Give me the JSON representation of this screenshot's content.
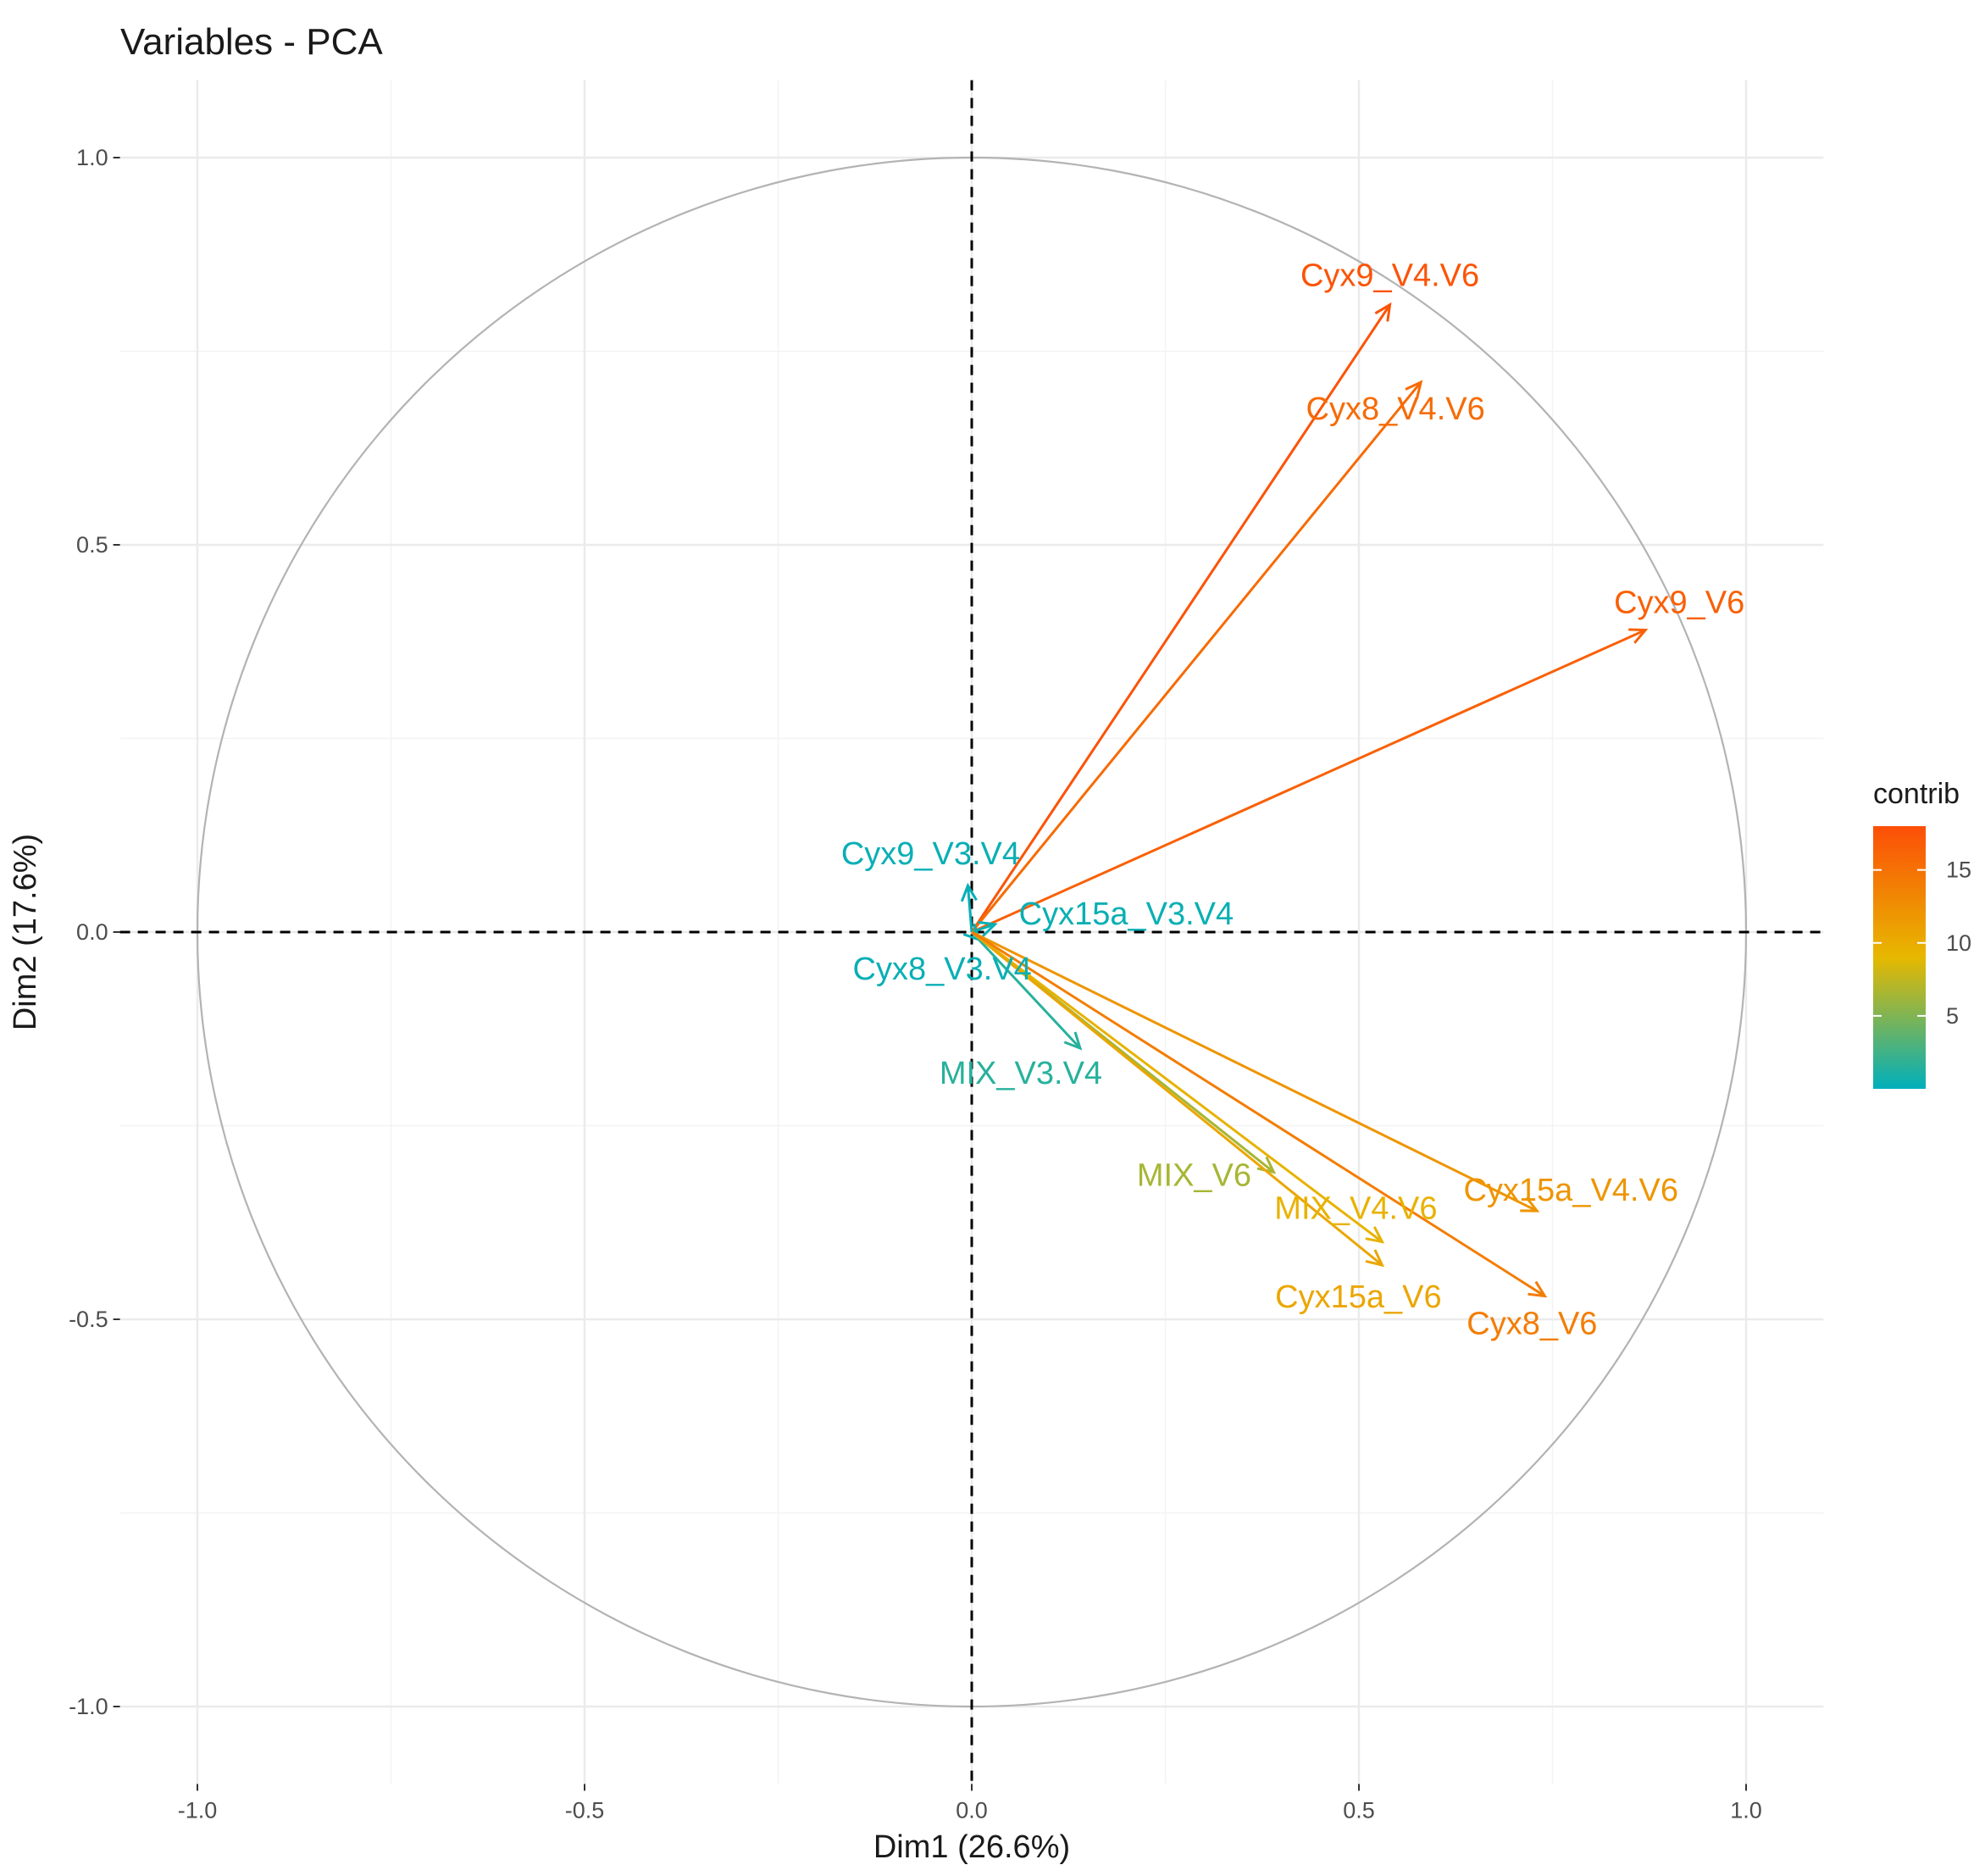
{
  "chart_data": {
    "type": "pca-variable-correlation-circle",
    "title": "Variables - PCA",
    "xlabel": "Dim1 (26.6%)",
    "ylabel": "Dim2 (17.6%)",
    "xlim": [
      -1.1,
      1.1
    ],
    "ylim": [
      -1.1,
      1.1
    ],
    "xticks": [
      {
        "value": -1.0,
        "label": "-1.0"
      },
      {
        "value": -0.5,
        "label": "-0.5"
      },
      {
        "value": 0.0,
        "label": "0.0"
      },
      {
        "value": 0.5,
        "label": "0.5"
      },
      {
        "value": 1.0,
        "label": "1.0"
      }
    ],
    "yticks": [
      {
        "value": 1.0,
        "label": "1.0"
      },
      {
        "value": 0.5,
        "label": "0.5"
      },
      {
        "value": 0.0,
        "label": "0.0"
      },
      {
        "value": -0.5,
        "label": "-0.5"
      },
      {
        "value": -1.0,
        "label": "-1.0"
      }
    ],
    "grid": true,
    "unit_circle": true,
    "reference_lines": "dashed at x=0 and y=0",
    "variables": [
      {
        "name": "Cyx9_V4.V6",
        "label": "Cyx9_V4.V6",
        "x": 0.54,
        "y": 0.81,
        "contrib": 17.5
      },
      {
        "name": "Cyx8_V4.V6",
        "label": "Cyx8_V4.V6",
        "x": 0.58,
        "y": 0.71,
        "contrib": 15.5
      },
      {
        "name": "Cyx9_V6",
        "label": "Cyx9_V6",
        "x": 0.87,
        "y": 0.39,
        "contrib": 16.5
      },
      {
        "name": "Cyx9_V3.V4",
        "label": "Cyx9_V3.V4",
        "x": -0.005,
        "y": 0.06,
        "contrib": 0.3
      },
      {
        "name": "Cyx15a_V3.V4",
        "label": "Cyx15a_V3.V4",
        "x": 0.03,
        "y": 0.01,
        "contrib": 0.4
      },
      {
        "name": "Cyx8_V3.V4",
        "label": "Cyx8_V3.V4",
        "x": 0.01,
        "y": -0.01,
        "contrib": 0.3
      },
      {
        "name": "MIX_V3.V4",
        "label": "MIX_V3.V4",
        "x": 0.14,
        "y": -0.15,
        "contrib": 1.5
      },
      {
        "name": "MIX_V6",
        "label": "MIX_V6",
        "x": 0.39,
        "y": -0.31,
        "contrib": 6.5
      },
      {
        "name": "Cyx15a_V4.V6",
        "label": "Cyx15a_V4.V6",
        "x": 0.73,
        "y": -0.36,
        "contrib": 12.0
      },
      {
        "name": "MIX_V4.V6",
        "label": "MIX_V4.V6",
        "x": 0.53,
        "y": -0.4,
        "contrib": 9.5
      },
      {
        "name": "Cyx15a_V6",
        "label": "Cyx15a_V6",
        "x": 0.53,
        "y": -0.43,
        "contrib": 10.5
      },
      {
        "name": "Cyx8_V6",
        "label": "Cyx8_V6",
        "x": 0.74,
        "y": -0.47,
        "contrib": 14.0
      }
    ],
    "legend": {
      "title": "contrib",
      "position": "right",
      "range": [
        0,
        18
      ],
      "ticks": [
        {
          "value": 5,
          "label": "5"
        },
        {
          "value": 10,
          "label": "10"
        },
        {
          "value": 15,
          "label": "15"
        }
      ],
      "colors": [
        "#00AFBB",
        "#E7B800",
        "#FC4E07"
      ]
    }
  }
}
